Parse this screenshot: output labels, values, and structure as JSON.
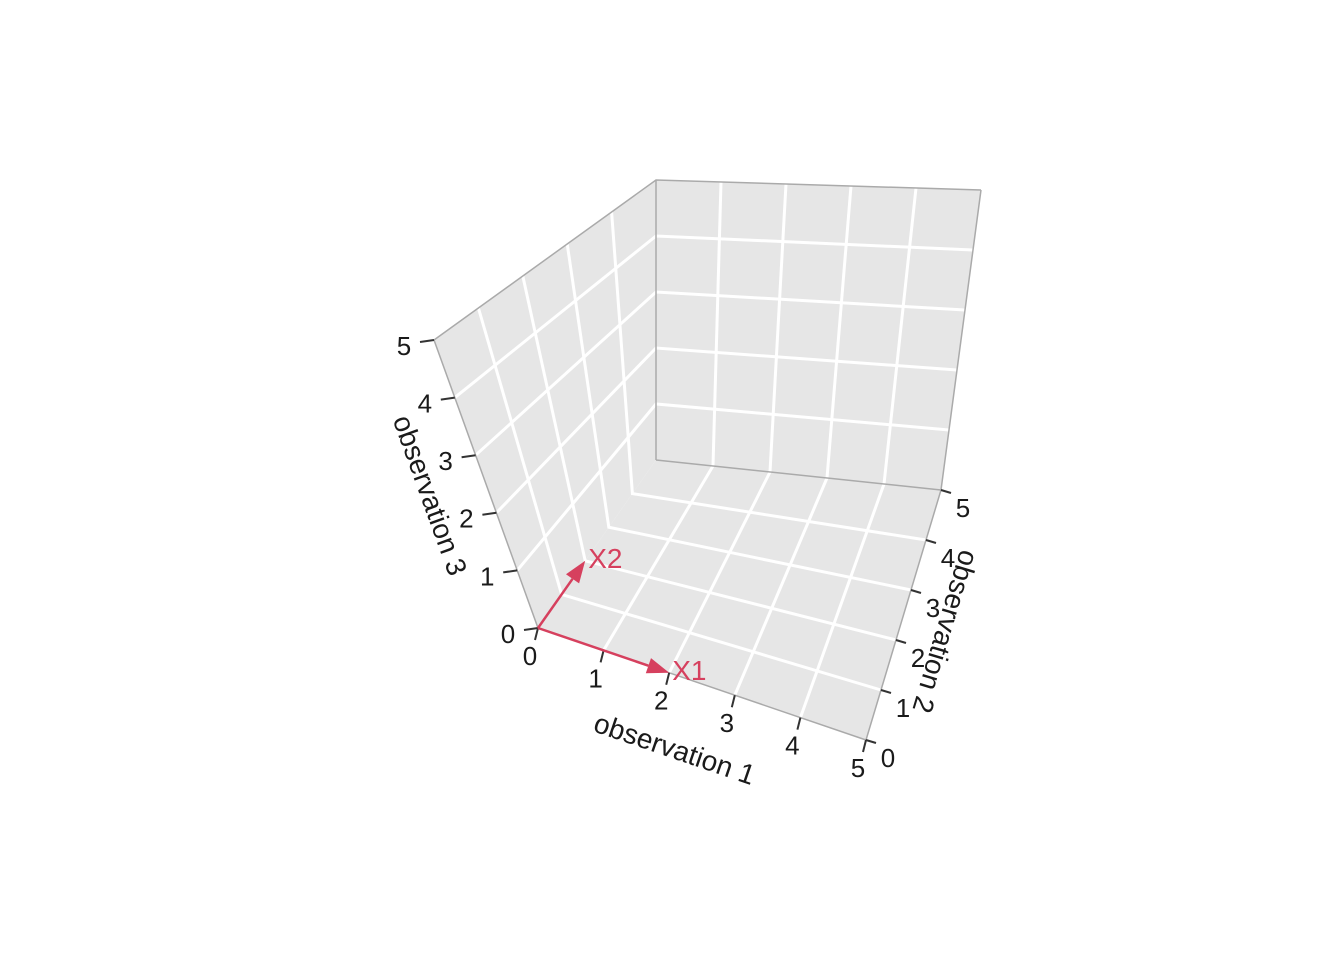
{
  "chart_data": {
    "type": "3d-vector",
    "axes": {
      "x": {
        "label": "observation 1",
        "range": [
          0,
          5
        ],
        "ticks": [
          0,
          1,
          2,
          3,
          4,
          5
        ]
      },
      "y": {
        "label": "observation 2",
        "range": [
          0,
          5
        ],
        "ticks": [
          0,
          1,
          2,
          3,
          4,
          5
        ]
      },
      "z": {
        "label": "observation 3",
        "range": [
          0,
          5
        ],
        "ticks": [
          0,
          1,
          2,
          3,
          4,
          5
        ]
      }
    },
    "vectors": [
      {
        "name": "X1",
        "from": [
          0,
          0,
          0
        ],
        "to": [
          2,
          0,
          0
        ]
      },
      {
        "name": "X2",
        "from": [
          0,
          0,
          0
        ],
        "to": [
          0,
          2,
          0
        ]
      }
    ],
    "grid": true,
    "colors": {
      "panel": "#e6e6e6",
      "panel_edge": "#aaaaaa",
      "grid": "#ffffff",
      "vector": "#d6405e",
      "text": "#1a1a1a"
    }
  }
}
